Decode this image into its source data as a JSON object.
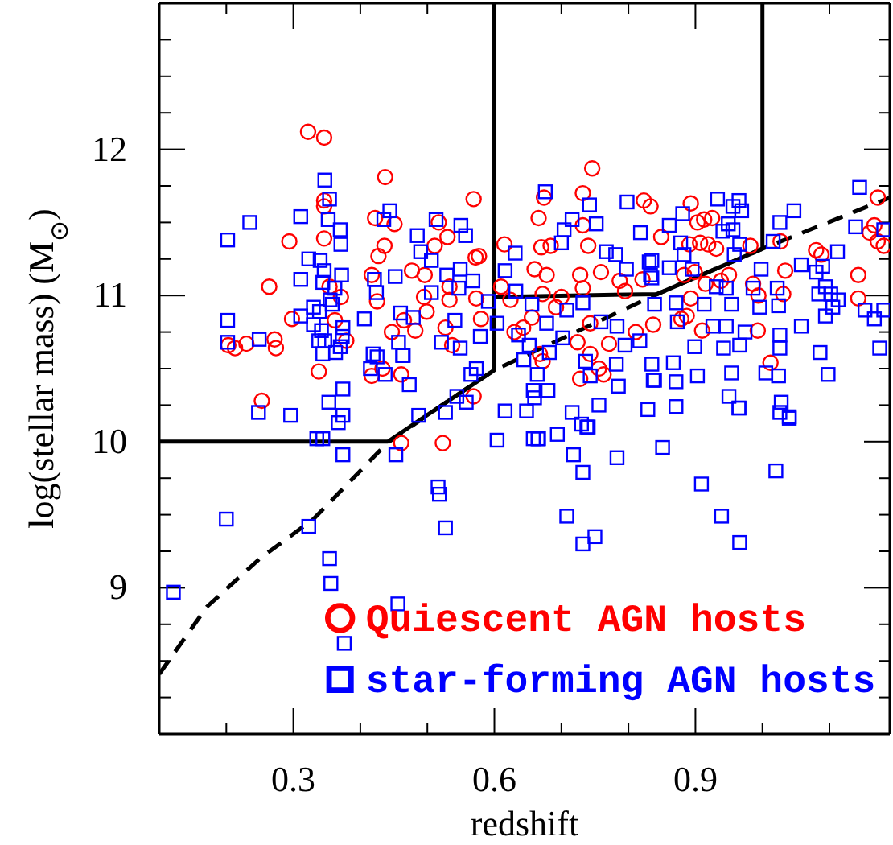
{
  "chart_data": {
    "type": "scatter",
    "xlabel": "redshift",
    "ylabel": "log(stellar mass) (M$_{⊙}$)",
    "xlim": [
      0.1,
      1.19
    ],
    "ylim": [
      8,
      13
    ],
    "xticks": [
      {
        "value": 0.2,
        "label": null
      },
      0.3,
      {
        "value": 0.4,
        "label": null
      },
      {
        "value": 0.5,
        "label": null
      },
      0.6,
      {
        "value": 0.7,
        "label": null
      },
      {
        "value": 0.8,
        "label": null
      },
      0.9,
      {
        "value": 1.0,
        "label": null
      },
      {
        "value": 1.1,
        "label": null
      }
    ],
    "yticks": [
      {
        "value": 8.25,
        "label": null
      },
      {
        "value": 8.5,
        "label": null
      },
      {
        "value": 8.75,
        "label": null
      },
      9,
      {
        "value": 9.25,
        "label": null
      },
      {
        "value": 9.5,
        "label": null
      },
      {
        "value": 9.75,
        "label": null
      },
      10,
      {
        "value": 10.25,
        "label": null
      },
      {
        "value": 10.5,
        "label": null
      },
      {
        "value": 10.75,
        "label": null
      },
      11,
      {
        "value": 11.25,
        "label": null
      },
      {
        "value": 11.5,
        "label": null
      },
      {
        "value": 11.75,
        "label": null
      },
      12,
      {
        "value": 12.25,
        "label": null
      },
      {
        "value": 12.5,
        "label": null
      },
      {
        "value": 12.75,
        "label": null
      }
    ],
    "legend": "bottom right",
    "series": [
      {
        "type": "line",
        "color": "#000000",
        "line_style": "dashed",
        "marker": "none",
        "x": [
          0.1,
          0.171,
          0.25,
          0.33,
          0.44,
          0.525,
          0.6,
          0.843,
          1.0,
          1.19
        ],
        "values": [
          8.41,
          8.87,
          9.2,
          9.47,
          9.99,
          10.26,
          10.49,
          11.01,
          11.32,
          11.67
        ]
      },
      {
        "type": "line",
        "color": "#000000",
        "line_style": "solid",
        "marker": "none",
        "x": [
          0.1,
          0.441,
          0.525,
          0.6,
          0.6
        ],
        "values": [
          10,
          10,
          10.26,
          10.49,
          13
        ]
      },
      {
        "type": "line",
        "color": "#000000",
        "line_style": "solid",
        "marker": "none",
        "x": [
          0.6,
          0.843,
          1.0,
          1.0
        ],
        "values": [
          10.99,
          11.01,
          11.32,
          13
        ]
      },
      {
        "type": "scatter",
        "name": "Quiescent AGN hosts",
        "color": "#ff0000",
        "marker": "circle",
        "x": [
          0.322,
          0.346,
          0.437,
          0.346,
          0.346,
          0.422,
          0.451,
          0.294,
          0.346,
          0.436,
          0.427,
          0.264,
          0.417,
          0.354,
          0.371,
          0.425,
          0.298,
          0.362,
          0.447,
          0.465,
          0.272,
          0.274,
          0.203,
          0.213,
          0.23,
          0.379,
          0.433,
          0.417,
          0.461,
          0.338,
          0.253,
          0.461,
          0.523,
          0.746,
          0.569,
          0.732,
          0.674,
          0.823,
          0.833,
          0.517,
          0.53,
          0.511,
          0.666,
          0.732,
          0.67,
          0.684,
          0.74,
          0.572,
          0.577,
          0.615,
          0.477,
          0.496,
          0.533,
          0.61,
          0.66,
          0.678,
          0.728,
          0.759,
          0.787,
          0.821,
          0.495,
          0.533,
          0.573,
          0.624,
          0.672,
          0.7,
          0.732,
          0.795,
          0.499,
          0.482,
          0.58,
          0.63,
          0.643,
          0.656,
          0.692,
          0.743,
          0.537,
          0.527,
          0.811,
          0.771,
          0.668,
          0.672,
          0.743,
          0.724,
          0.756,
          0.763,
          0.728,
          0.569,
          0.893,
          0.913,
          0.925,
          0.903,
          0.849,
          0.891,
          0.907,
          0.919,
          0.931,
          0.982,
          1.027,
          1.08,
          1.088,
          1.172,
          1.167,
          1.16,
          1.172,
          1.181,
          1.034,
          1.143,
          0.883,
          0.899,
          0.938,
          0.95,
          0.915,
          0.986,
          0.893,
          0.994,
          1.031,
          1.143,
          0.879,
          0.887,
          0.837,
          0.91,
          0.993,
          1.012
        ],
        "values": [
          12.12,
          12.08,
          11.81,
          11.65,
          11.61,
          11.53,
          11.49,
          11.37,
          11.39,
          11.34,
          11.27,
          11.06,
          11.14,
          11.06,
          10.99,
          10.96,
          10.84,
          10.83,
          10.75,
          10.83,
          10.7,
          10.64,
          10.66,
          10.64,
          10.67,
          10.69,
          10.5,
          10.45,
          10.46,
          10.48,
          10.28,
          9.99,
          9.99,
          11.87,
          11.66,
          11.7,
          11.67,
          11.65,
          11.61,
          11.5,
          11.4,
          11.34,
          11.53,
          11.48,
          11.33,
          11.34,
          11.34,
          11.26,
          11.27,
          11.35,
          11.17,
          11.14,
          11.06,
          11.06,
          11.18,
          11.14,
          11.14,
          11.16,
          11.1,
          11.11,
          10.99,
          10.97,
          10.98,
          10.97,
          11.01,
          10.99,
          11.05,
          11.03,
          10.89,
          10.76,
          10.84,
          10.75,
          10.78,
          10.85,
          10.92,
          10.81,
          10.66,
          10.78,
          10.75,
          10.67,
          10.6,
          10.55,
          10.6,
          10.68,
          10.5,
          10.46,
          10.43,
          10.31,
          11.63,
          11.52,
          11.53,
          11.5,
          11.4,
          11.35,
          11.36,
          11.35,
          11.32,
          11.34,
          11.37,
          11.31,
          11.28,
          11.67,
          11.48,
          11.43,
          11.37,
          11.34,
          11.17,
          11.14,
          11.14,
          11.16,
          11.1,
          11.14,
          11.08,
          11.08,
          10.98,
          11.0,
          11.01,
          10.98,
          10.84,
          10.86,
          10.8,
          10.76,
          10.76,
          10.54
        ]
      },
      {
        "type": "scatter",
        "name": "star-forming AGN hosts",
        "color": "#0000ff",
        "marker": "square",
        "x": [
          0.347,
          0.354,
          0.235,
          0.311,
          0.202,
          0.352,
          0.37,
          0.371,
          0.444,
          0.435,
          0.323,
          0.34,
          0.346,
          0.372,
          0.311,
          0.344,
          0.362,
          0.355,
          0.33,
          0.358,
          0.421,
          0.424,
          0.452,
          0.311,
          0.339,
          0.406,
          0.33,
          0.342,
          0.374,
          0.46,
          0.202,
          0.202,
          0.249,
          0.338,
          0.347,
          0.373,
          0.344,
          0.363,
          0.37,
          0.457,
          0.463,
          0.419,
          0.425,
          0.415,
          0.437,
          0.374,
          0.353,
          0.248,
          0.296,
          0.367,
          0.374,
          0.335,
          0.344,
          0.374,
          0.453,
          0.2,
          0.121,
          0.323,
          0.354,
          0.356,
          0.376,
          0.456,
          0.516,
          0.518,
          0.527,
          0.487,
          0.527,
          0.604,
          0.616,
          0.648,
          0.658,
          0.666,
          0.694,
          0.718,
          0.732,
          0.708,
          0.732,
          0.75,
          0.783,
          0.73,
          0.74,
          0.851,
          0.829,
          0.871,
          0.909,
          0.939,
          0.966,
          0.965,
          1.02,
          1.026,
          1.04,
          0.676,
          0.798,
          0.818,
          0.742,
          0.513,
          0.55,
          0.485,
          0.557,
          0.49,
          0.704,
          0.716,
          0.752,
          0.767,
          0.781,
          0.7,
          0.631,
          0.616,
          0.549,
          0.529,
          0.506,
          0.568,
          0.506,
          0.547,
          0.591,
          0.797,
          0.831,
          0.835,
          0.632,
          0.656,
          0.708,
          0.732,
          0.759,
          0.479,
          0.541,
          0.604,
          0.678,
          0.521,
          0.549,
          0.579,
          0.636,
          0.702,
          0.783,
          0.817,
          0.795,
          0.652,
          0.682,
          0.464,
          0.473,
          0.644,
          0.736,
          0.743,
          0.782,
          0.785,
          0.837,
          0.573,
          0.565,
          0.558,
          0.544,
          0.664,
          0.658,
          0.68,
          0.66,
          0.756,
          0.716,
          0.738,
          0.665,
          0.933,
          0.965,
          0.969,
          0.956,
          1.047,
          1.145,
          1.181,
          0.881,
          0.861,
          0.949,
          0.941,
          0.956,
          1.026,
          1.139,
          0.878,
          0.966,
          1.016,
          1.112,
          0.883,
          0.835,
          0.861,
          0.895,
          0.958,
          0.998,
          1.058,
          1.09,
          1.08,
          0.833,
          0.931,
          0.946,
          0.986,
          1.022,
          1.094,
          1.102,
          1.084,
          0.839,
          0.871,
          0.913,
          0.954,
          0.996,
          1.024,
          1.113,
          1.105,
          1.094,
          1.153,
          1.167,
          1.181,
          0.873,
          0.926,
          0.946,
          0.974,
          1.058,
          0.899,
          0.942,
          0.966,
          1.026,
          1.026,
          1.086,
          1.175,
          0.835,
          0.867,
          0.839,
          0.871,
          0.903,
          0.954,
          1.005,
          1.024,
          1.098,
          0.95,
          0.965,
          1.028,
          1.04
        ],
        "values": [
          11.79,
          11.66,
          11.5,
          11.54,
          11.38,
          11.52,
          11.45,
          11.35,
          11.58,
          11.52,
          11.25,
          11.24,
          11.17,
          11.14,
          11.11,
          11.09,
          11.05,
          10.97,
          10.92,
          10.94,
          11.11,
          11.02,
          11.13,
          10.86,
          10.89,
          10.84,
          10.8,
          10.76,
          10.78,
          10.88,
          10.83,
          10.68,
          10.7,
          10.69,
          10.69,
          10.72,
          10.6,
          10.61,
          10.65,
          10.68,
          10.59,
          10.6,
          10.58,
          10.5,
          10.46,
          10.36,
          10.27,
          10.2,
          10.18,
          10.13,
          10.18,
          10.02,
          10.02,
          9.91,
          9.91,
          9.47,
          8.97,
          9.42,
          9.2,
          9.03,
          8.62,
          8.89,
          9.69,
          9.64,
          9.41,
          10.18,
          10.2,
          10.01,
          10.21,
          10.21,
          10.02,
          10.02,
          10.05,
          9.91,
          9.79,
          9.49,
          9.3,
          9.35,
          9.89,
          10.12,
          10.1,
          9.96,
          10.22,
          10.24,
          9.71,
          9.49,
          9.31,
          10.23,
          9.8,
          10.2,
          10.17,
          11.71,
          11.64,
          11.43,
          11.62,
          11.52,
          11.48,
          11.41,
          11.41,
          11.3,
          11.45,
          11.52,
          11.49,
          11.3,
          11.28,
          11.36,
          11.29,
          11.17,
          11.18,
          11.14,
          11.24,
          11.1,
          11.02,
          11.05,
          10.96,
          11.18,
          11.23,
          11.12,
          11.03,
          10.94,
          10.9,
          10.95,
          10.82,
          10.85,
          10.83,
          10.81,
          10.81,
          10.68,
          10.64,
          10.72,
          10.73,
          10.71,
          10.79,
          10.69,
          10.66,
          10.66,
          10.61,
          10.59,
          10.39,
          10.56,
          10.55,
          10.45,
          10.53,
          10.38,
          10.42,
          10.5,
          10.46,
          10.27,
          10.31,
          10.46,
          10.35,
          10.35,
          10.3,
          10.25,
          10.2,
          10.1,
          10.02,
          11.66,
          11.65,
          11.58,
          11.61,
          11.58,
          11.74,
          11.45,
          11.56,
          11.48,
          11.49,
          11.44,
          11.45,
          11.5,
          11.47,
          11.36,
          11.35,
          11.37,
          11.3,
          11.28,
          11.24,
          11.19,
          11.18,
          11.28,
          11.18,
          11.21,
          11.2,
          11.16,
          11.14,
          11.06,
          11.05,
          11.05,
          11.05,
          11.06,
          11.01,
          11.01,
          10.94,
          10.95,
          10.94,
          10.94,
          10.92,
          10.93,
          10.97,
          10.92,
          10.86,
          10.9,
          10.84,
          10.9,
          10.82,
          10.79,
          10.79,
          10.75,
          10.79,
          10.65,
          10.64,
          10.66,
          10.73,
          10.64,
          10.61,
          10.64,
          10.53,
          10.54,
          10.42,
          10.41,
          10.45,
          10.47,
          10.47,
          10.45,
          10.46,
          10.31,
          10.23,
          10.27,
          10.16
        ]
      }
    ]
  }
}
